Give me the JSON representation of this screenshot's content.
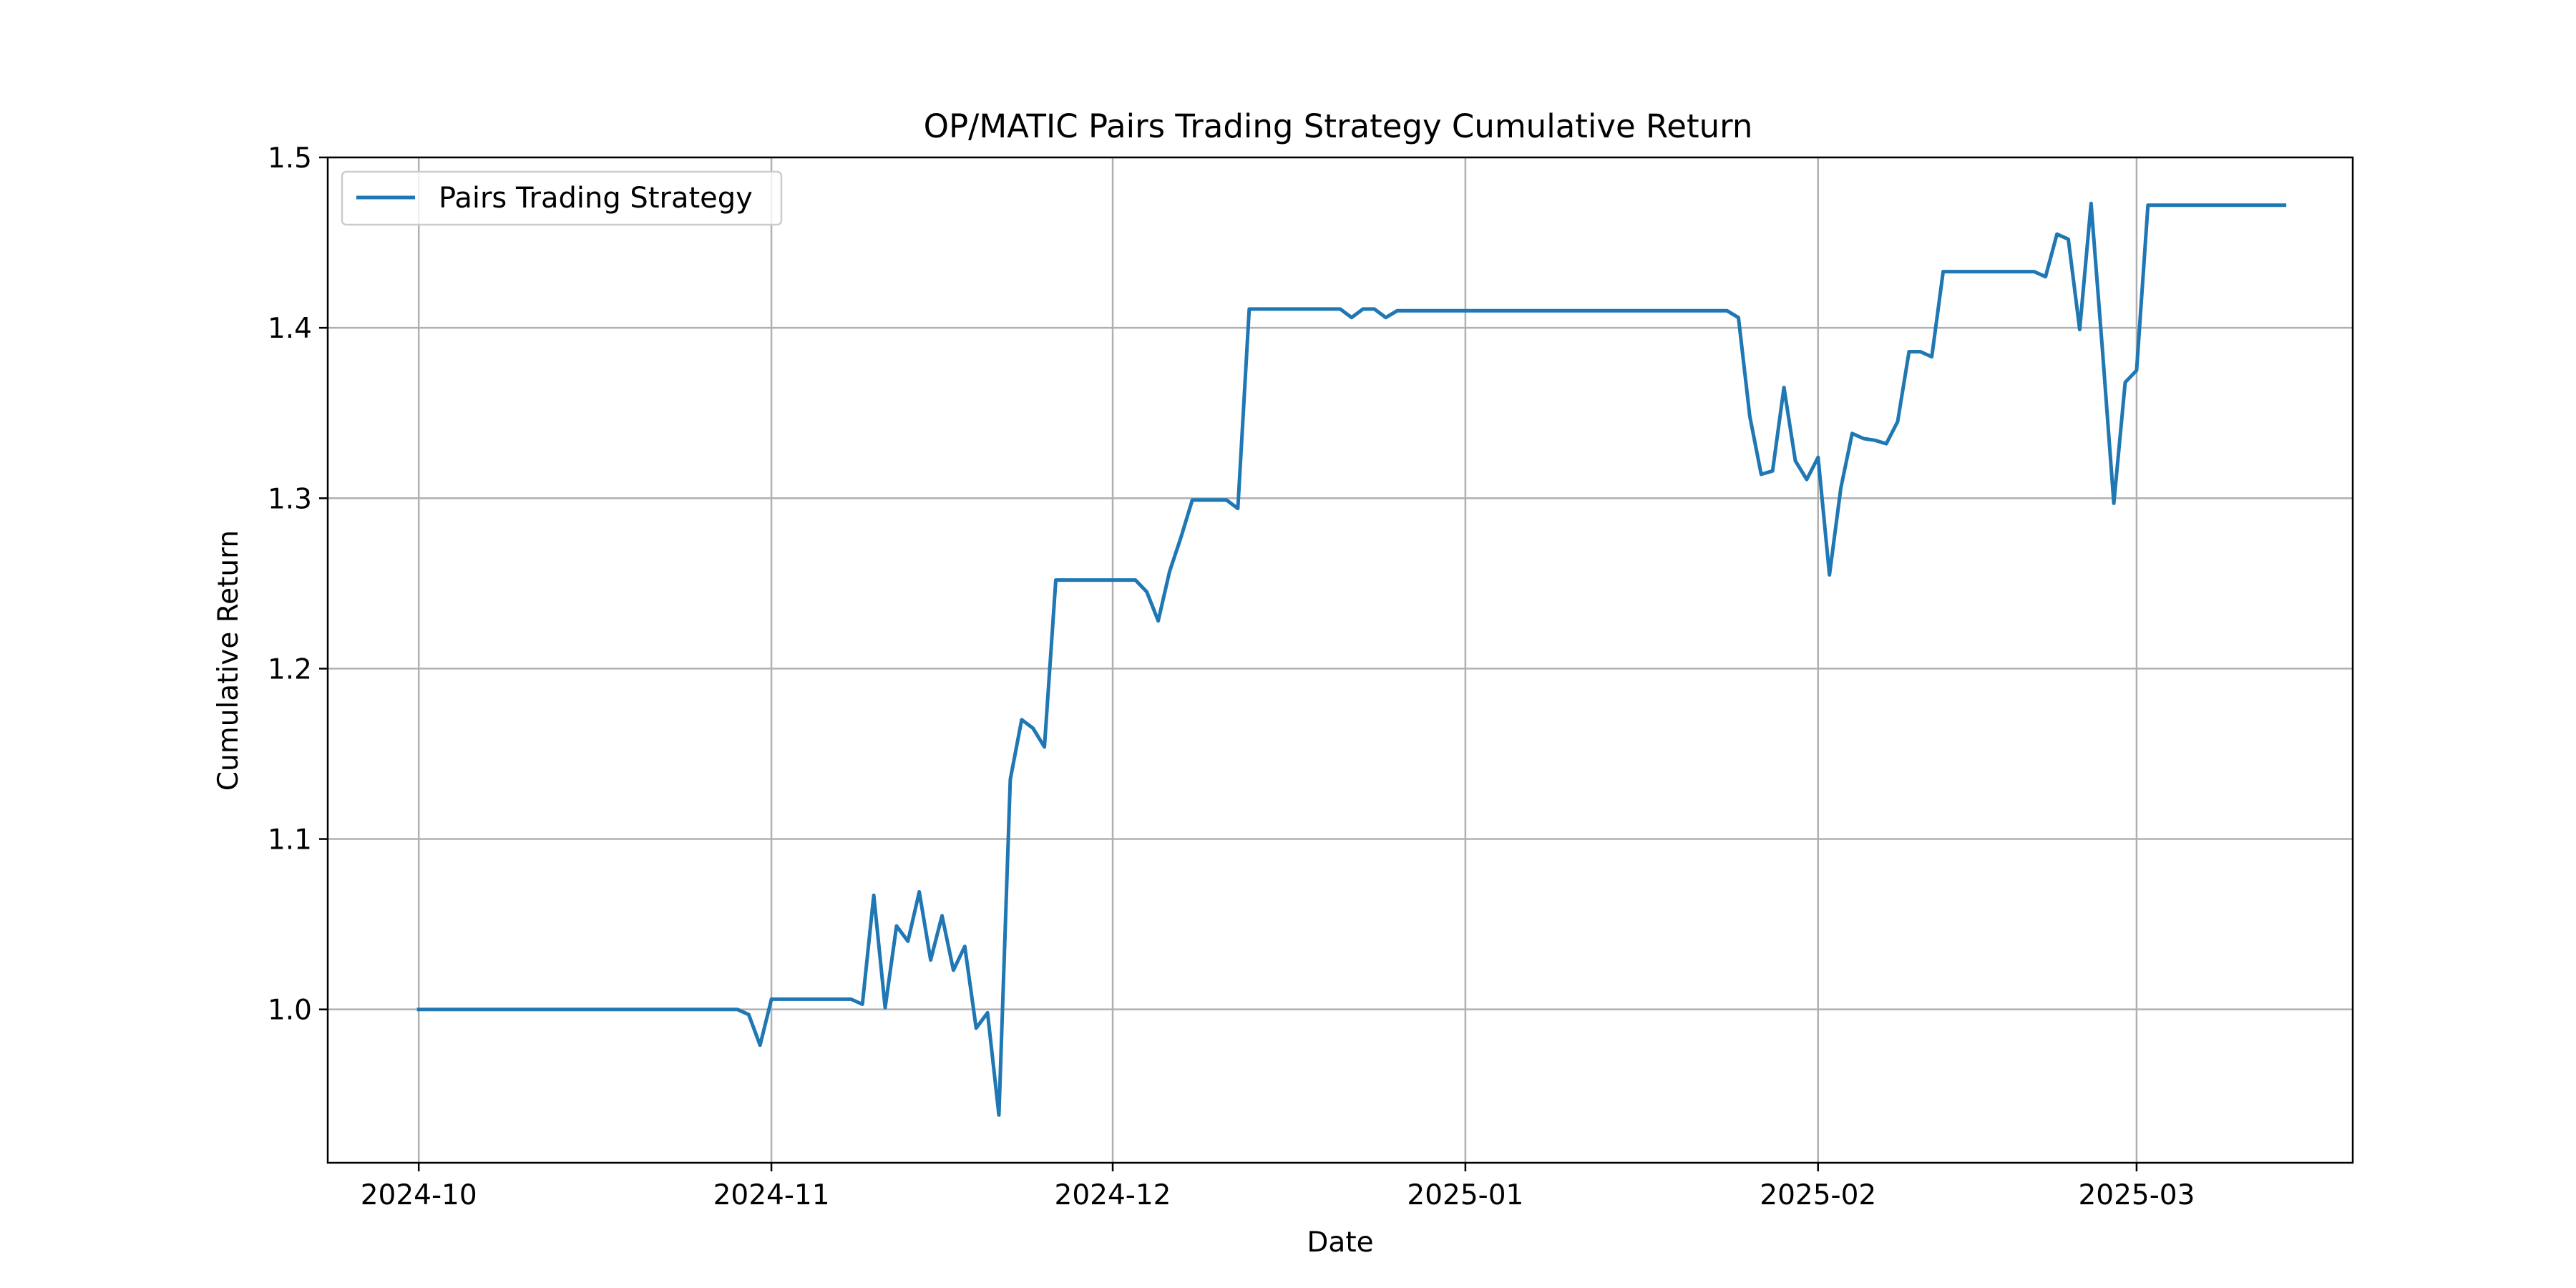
{
  "chart_data": {
    "type": "line",
    "title": "OP/MATIC Pairs Trading Strategy Cumulative Return",
    "xlabel": "Date",
    "ylabel": "Cumulative Return",
    "xlim": [
      "2024-09-23",
      "2025-03-20"
    ],
    "ylim": [
      0.91,
      1.5
    ],
    "grid": true,
    "legend": {
      "placement": "top-left",
      "entries": [
        "Pairs Trading Strategy"
      ]
    },
    "x_ticks": [
      "2024-10",
      "2024-11",
      "2024-12",
      "2025-01",
      "2025-02",
      "2025-03"
    ],
    "x_tick_dates": [
      "2024-10-01",
      "2024-11-01",
      "2024-12-01",
      "2025-01-01",
      "2025-02-01",
      "2025-03-01"
    ],
    "y_ticks": [
      "1.0",
      "1.1",
      "1.2",
      "1.3",
      "1.4",
      "1.5"
    ],
    "y_tick_values": [
      1.0,
      1.1,
      1.2,
      1.3,
      1.4,
      1.5
    ],
    "line_color": "#1f77b4",
    "series": [
      {
        "name": "Pairs Trading Strategy",
        "x": [
          "2024-10-01",
          "2024-10-29",
          "2024-10-30",
          "2024-10-31",
          "2024-11-01",
          "2024-11-08",
          "2024-11-09",
          "2024-11-10",
          "2024-11-11",
          "2024-11-12",
          "2024-11-13",
          "2024-11-14",
          "2024-11-15",
          "2024-11-16",
          "2024-11-17",
          "2024-11-18",
          "2024-11-19",
          "2024-11-20",
          "2024-11-21",
          "2024-11-22",
          "2024-11-23",
          "2024-11-24",
          "2024-11-25",
          "2024-11-26",
          "2024-12-03",
          "2024-12-04",
          "2024-12-05",
          "2024-12-06",
          "2024-12-07",
          "2024-12-08",
          "2024-12-11",
          "2024-12-12",
          "2024-12-13",
          "2024-12-21",
          "2024-12-22",
          "2024-12-23",
          "2024-12-24",
          "2024-12-25",
          "2024-12-26",
          "2025-01-24",
          "2025-01-25",
          "2025-01-26",
          "2025-01-27",
          "2025-01-28",
          "2025-01-29",
          "2025-01-30",
          "2025-01-31",
          "2025-02-01",
          "2025-02-02",
          "2025-02-03",
          "2025-02-04",
          "2025-02-05",
          "2025-02-06",
          "2025-02-07",
          "2025-02-08",
          "2025-02-09",
          "2025-02-10",
          "2025-02-11",
          "2025-02-12",
          "2025-02-13",
          "2025-02-14",
          "2025-02-15",
          "2025-02-20",
          "2025-02-21",
          "2025-02-22",
          "2025-02-23",
          "2025-02-24",
          "2025-02-25",
          "2025-02-26",
          "2025-02-27",
          "2025-02-28",
          "2025-03-01",
          "2025-03-02",
          "2025-03-14"
        ],
        "values": [
          1.0,
          1.0,
          0.997,
          0.979,
          1.006,
          1.006,
          1.003,
          1.067,
          1.001,
          1.049,
          1.04,
          1.069,
          1.029,
          1.055,
          1.023,
          1.037,
          0.989,
          0.998,
          0.938,
          1.135,
          1.17,
          1.165,
          1.154,
          1.252,
          1.252,
          1.245,
          1.228,
          1.257,
          1.277,
          1.299,
          1.299,
          1.294,
          1.411,
          1.411,
          1.406,
          1.411,
          1.411,
          1.406,
          1.41,
          1.41,
          1.406,
          1.348,
          1.314,
          1.316,
          1.365,
          1.322,
          1.311,
          1.324,
          1.255,
          1.306,
          1.338,
          1.335,
          1.334,
          1.332,
          1.345,
          1.386,
          1.386,
          1.383,
          1.433,
          1.433,
          1.433,
          1.433,
          1.433,
          1.43,
          1.455,
          1.452,
          1.399,
          1.473,
          1.387,
          1.297,
          1.368,
          1.375,
          1.472,
          1.472
        ]
      }
    ]
  }
}
